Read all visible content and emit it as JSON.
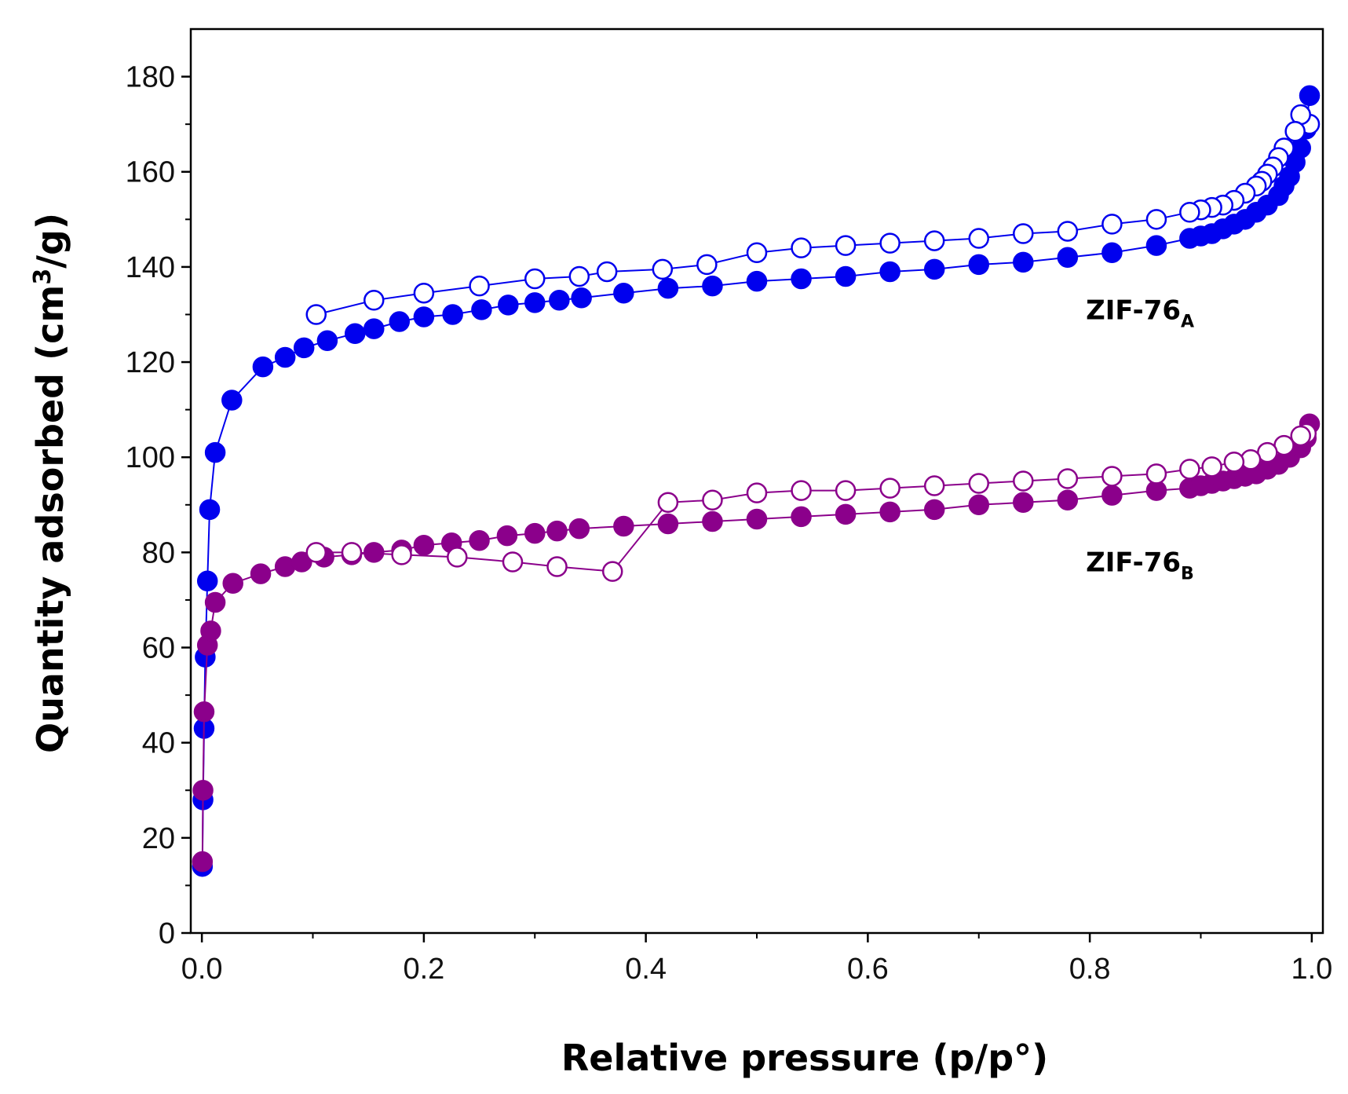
{
  "chart_data": {
    "type": "scatter",
    "title": "",
    "xlabel": "Relative pressure (p/p°)",
    "ylabel_parts": {
      "prefix": "Quantity adsorbed (cm",
      "sup": "3",
      "suffix": "/g)"
    },
    "xlim": [
      -0.01,
      1.01
    ],
    "ylim": [
      0,
      190
    ],
    "xticks": [
      0.0,
      0.2,
      0.4,
      0.6,
      0.8,
      1.0
    ],
    "xtick_labels": [
      "0.0",
      "0.2",
      "0.4",
      "0.6",
      "0.8",
      "1.0"
    ],
    "yticks": [
      0,
      20,
      40,
      60,
      80,
      100,
      120,
      140,
      160,
      180
    ],
    "ytick_labels": [
      "0",
      "20",
      "40",
      "60",
      "80",
      "100",
      "120",
      "140",
      "160",
      "180"
    ],
    "annotations": [
      {
        "id": "zif76a",
        "text": "ZIF-76",
        "sub": "A",
        "x": 0.8,
        "y": 129,
        "color": "#0000ee"
      },
      {
        "id": "zif76b",
        "text": "ZIF-76",
        "sub": "B",
        "x": 0.8,
        "y": 76,
        "color": "#8b008b"
      }
    ],
    "series": [
      {
        "name": "ZIF-76A adsorption",
        "color": "#0000ee",
        "marker": "filled",
        "x": [
          0.0005,
          0.001,
          0.002,
          0.003,
          0.005,
          0.007,
          0.012,
          0.027,
          0.055,
          0.075,
          0.092,
          0.113,
          0.138,
          0.155,
          0.178,
          0.2,
          0.226,
          0.252,
          0.276,
          0.3,
          0.322,
          0.342,
          0.38,
          0.42,
          0.46,
          0.5,
          0.54,
          0.58,
          0.62,
          0.66,
          0.7,
          0.74,
          0.78,
          0.82,
          0.86,
          0.89,
          0.9,
          0.91,
          0.92,
          0.93,
          0.94,
          0.95,
          0.96,
          0.97,
          0.975,
          0.98,
          0.985,
          0.99,
          0.995,
          0.998
        ],
        "y": [
          14,
          28,
          43,
          58,
          74,
          89,
          101,
          112,
          119,
          121,
          123,
          124.5,
          126,
          127,
          128.5,
          129.5,
          130,
          131,
          132,
          132.5,
          133,
          133.5,
          134.5,
          135.5,
          136,
          137,
          137.5,
          138,
          139,
          139.5,
          140.5,
          141,
          142,
          143,
          144.5,
          146,
          146.5,
          147,
          148,
          149,
          150,
          151.5,
          153,
          155,
          157,
          159,
          162,
          165,
          169,
          176
        ]
      },
      {
        "name": "ZIF-76A desorption",
        "color": "#0000ee",
        "marker": "open",
        "x": [
          0.998,
          0.99,
          0.985,
          0.975,
          0.97,
          0.965,
          0.96,
          0.955,
          0.95,
          0.94,
          0.93,
          0.92,
          0.91,
          0.9,
          0.89,
          0.86,
          0.82,
          0.78,
          0.74,
          0.7,
          0.66,
          0.62,
          0.58,
          0.54,
          0.5,
          0.455,
          0.415,
          0.365,
          0.34,
          0.3,
          0.25,
          0.2,
          0.155,
          0.103
        ],
        "y": [
          170,
          172,
          168.5,
          165,
          163,
          161,
          159.5,
          158,
          157,
          155.5,
          154,
          153,
          152.5,
          152,
          151.5,
          150,
          149,
          147.5,
          147,
          146,
          145.5,
          145,
          144.5,
          144,
          143,
          140.5,
          139.5,
          139,
          138,
          137.5,
          136,
          134.5,
          133,
          130
        ]
      },
      {
        "name": "ZIF-76B adsorption",
        "color": "#8b008b",
        "marker": "filled",
        "x": [
          0.0005,
          0.001,
          0.002,
          0.005,
          0.008,
          0.012,
          0.028,
          0.053,
          0.075,
          0.09,
          0.11,
          0.135,
          0.155,
          0.18,
          0.2,
          0.225,
          0.25,
          0.275,
          0.3,
          0.32,
          0.34,
          0.38,
          0.42,
          0.46,
          0.5,
          0.54,
          0.58,
          0.62,
          0.66,
          0.7,
          0.74,
          0.78,
          0.82,
          0.86,
          0.89,
          0.9,
          0.91,
          0.92,
          0.93,
          0.94,
          0.95,
          0.96,
          0.97,
          0.98,
          0.99,
          0.995,
          0.998
        ],
        "y": [
          15,
          30,
          46.5,
          60.5,
          63.5,
          69.5,
          73.5,
          75.5,
          77,
          78,
          79,
          79.5,
          80,
          80.5,
          81.5,
          82,
          82.5,
          83.5,
          84,
          84.5,
          85,
          85.5,
          86,
          86.5,
          87,
          87.5,
          88,
          88.5,
          89,
          90,
          90.5,
          91,
          92,
          93,
          93.5,
          94,
          94.5,
          95,
          95.5,
          96,
          96.5,
          97.5,
          98.5,
          100,
          102,
          104,
          107
        ]
      },
      {
        "name": "ZIF-76B desorption",
        "color": "#8b008b",
        "marker": "open",
        "x": [
          0.995,
          0.99,
          0.975,
          0.96,
          0.945,
          0.93,
          0.91,
          0.89,
          0.86,
          0.82,
          0.78,
          0.74,
          0.7,
          0.66,
          0.62,
          0.58,
          0.54,
          0.5,
          0.46,
          0.42,
          0.37,
          0.32,
          0.28,
          0.23,
          0.18,
          0.135,
          0.103
        ],
        "y": [
          105,
          104.5,
          102.5,
          101,
          99.5,
          99,
          98,
          97.5,
          96.5,
          96,
          95.5,
          95,
          94.5,
          94,
          93.5,
          93,
          93,
          92.5,
          91,
          90.5,
          76,
          77,
          78,
          79,
          79.5,
          80,
          80
        ]
      }
    ]
  }
}
